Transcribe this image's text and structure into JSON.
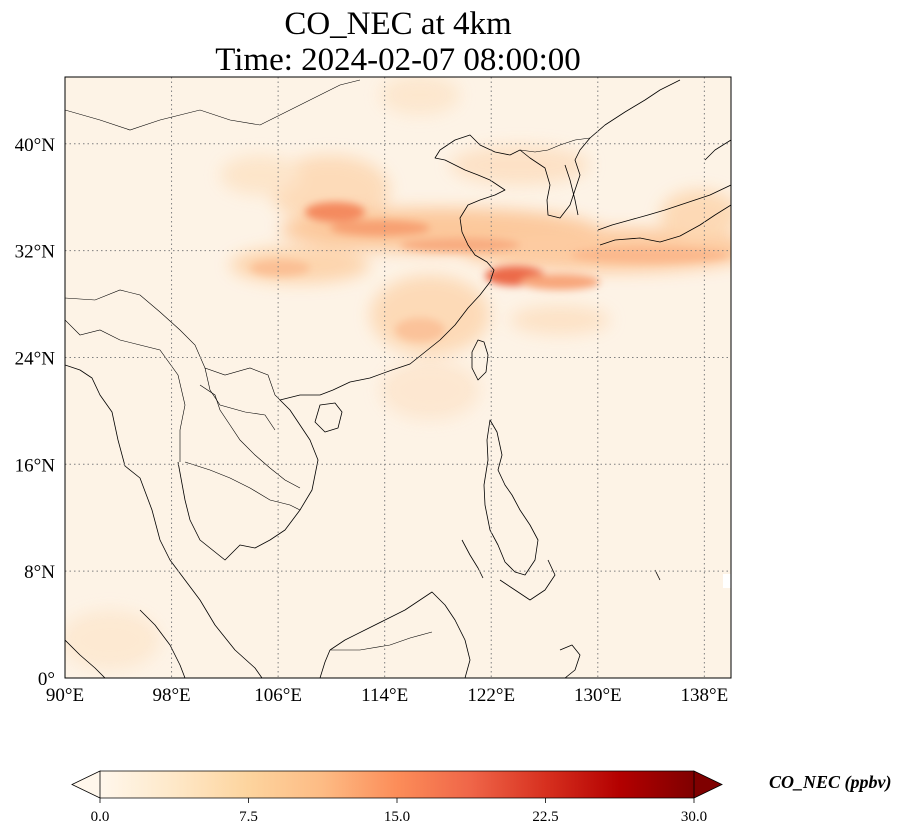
{
  "title": {
    "line1": "CO_NEC at 4km",
    "line2": "Time: 2024-02-07 08:00:00"
  },
  "map": {
    "projection": "PlateCarree",
    "extent_lon": [
      90,
      140
    ],
    "extent_lat": [
      0,
      45
    ],
    "gridlines": "dotted grey",
    "lon_ticks": [
      90,
      98,
      106,
      114,
      122,
      130,
      138
    ],
    "lat_ticks": [
      0,
      8,
      16,
      24,
      32,
      40
    ],
    "lon_tick_labels": [
      "90°E",
      "98°E",
      "106°E",
      "114°E",
      "122°E",
      "130°E",
      "138°E"
    ],
    "lat_tick_labels": [
      "0°",
      "8°N",
      "16°N",
      "24°N",
      "32°N",
      "40°N"
    ],
    "field_description": "CO_NEC plume band along ~30-35°N from central China eastward across East China Sea to Japan; peaks near 110°E 35°N and 125°E 30°N"
  },
  "colorbar": {
    "label": "CO_NEC (ppbv)",
    "colormap": "OrRd",
    "min": 0.0,
    "max": 30.0,
    "extend": "both",
    "ticks": [
      0.0,
      7.5,
      15.0,
      22.5,
      30.0
    ],
    "tick_labels": [
      "0.0",
      "7.5",
      "15.0",
      "22.5",
      "30.0"
    ],
    "colors": [
      "#fff7ec",
      "#fee8c8",
      "#fdd49e",
      "#fdbb84",
      "#fc8d59",
      "#ef6548",
      "#d7301f",
      "#b30000",
      "#7f0000"
    ]
  }
}
